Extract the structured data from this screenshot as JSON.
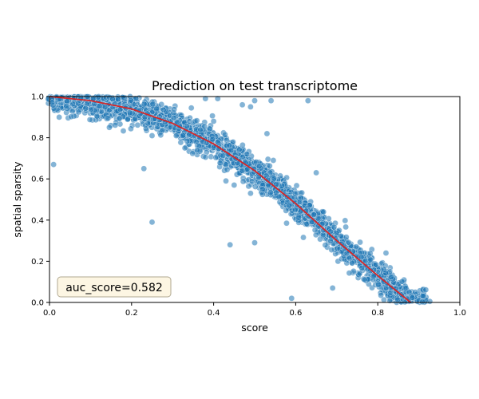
{
  "chart_data": {
    "type": "scatter",
    "title": "Prediction on test transcriptome",
    "xlabel": "score",
    "ylabel": "spatial sparsity",
    "xlim": [
      0,
      1
    ],
    "ylim": [
      0,
      1
    ],
    "x_ticks": [
      "0.0",
      "0.2",
      "0.4",
      "0.6",
      "0.8",
      "1.0"
    ],
    "y_ticks": [
      "0.0",
      "0.2",
      "0.4",
      "0.6",
      "0.8",
      "1.0"
    ],
    "grid": false,
    "legend": "none",
    "point_color": "#1f77b4",
    "fit_line_color": "#d62728",
    "annotation": {
      "text": "auc_score=0.582",
      "placement": "bottom-left",
      "box_fill": "#fdf6e3",
      "box_edge": "#b0a890"
    },
    "fit_line": {
      "x": [
        0.0,
        0.1,
        0.2,
        0.3,
        0.4,
        0.5,
        0.6,
        0.7,
        0.8,
        0.88
      ],
      "y": [
        1.0,
        0.98,
        0.94,
        0.87,
        0.77,
        0.64,
        0.48,
        0.3,
        0.13,
        0.0
      ]
    },
    "main_trend": {
      "x": [
        0.0,
        0.05,
        0.1,
        0.15,
        0.2,
        0.25,
        0.3,
        0.35,
        0.4,
        0.45,
        0.5,
        0.55,
        0.6,
        0.65,
        0.7,
        0.75,
        0.8,
        0.85,
        0.88,
        0.92
      ],
      "y": [
        1.0,
        0.99,
        0.98,
        0.965,
        0.94,
        0.91,
        0.87,
        0.825,
        0.77,
        0.71,
        0.64,
        0.565,
        0.48,
        0.395,
        0.3,
        0.215,
        0.13,
        0.05,
        0.0,
        0.0
      ],
      "n_points": 2500,
      "spread": 0.035
    },
    "outliers": [
      {
        "x": 0.01,
        "y": 0.67
      },
      {
        "x": 0.23,
        "y": 0.65
      },
      {
        "x": 0.25,
        "y": 0.39
      },
      {
        "x": 0.44,
        "y": 0.28
      },
      {
        "x": 0.5,
        "y": 0.29
      },
      {
        "x": 0.59,
        "y": 0.02
      },
      {
        "x": 0.69,
        "y": 0.07
      },
      {
        "x": 0.65,
        "y": 0.63
      },
      {
        "x": 0.43,
        "y": 0.59
      },
      {
        "x": 0.45,
        "y": 0.57
      },
      {
        "x": 0.47,
        "y": 0.96
      },
      {
        "x": 0.49,
        "y": 0.95
      },
      {
        "x": 0.5,
        "y": 0.98
      },
      {
        "x": 0.54,
        "y": 0.98
      },
      {
        "x": 0.63,
        "y": 0.98
      },
      {
        "x": 0.41,
        "y": 0.99
      },
      {
        "x": 0.38,
        "y": 0.99
      },
      {
        "x": 0.4,
        "y": 0.88
      },
      {
        "x": 0.36,
        "y": 0.74
      },
      {
        "x": 0.33,
        "y": 0.75
      },
      {
        "x": 0.25,
        "y": 0.81
      },
      {
        "x": 0.43,
        "y": 0.67
      },
      {
        "x": 0.49,
        "y": 0.53
      },
      {
        "x": 0.53,
        "y": 0.82
      },
      {
        "x": 0.76,
        "y": 0.22
      },
      {
        "x": 0.82,
        "y": 0.24
      }
    ]
  }
}
